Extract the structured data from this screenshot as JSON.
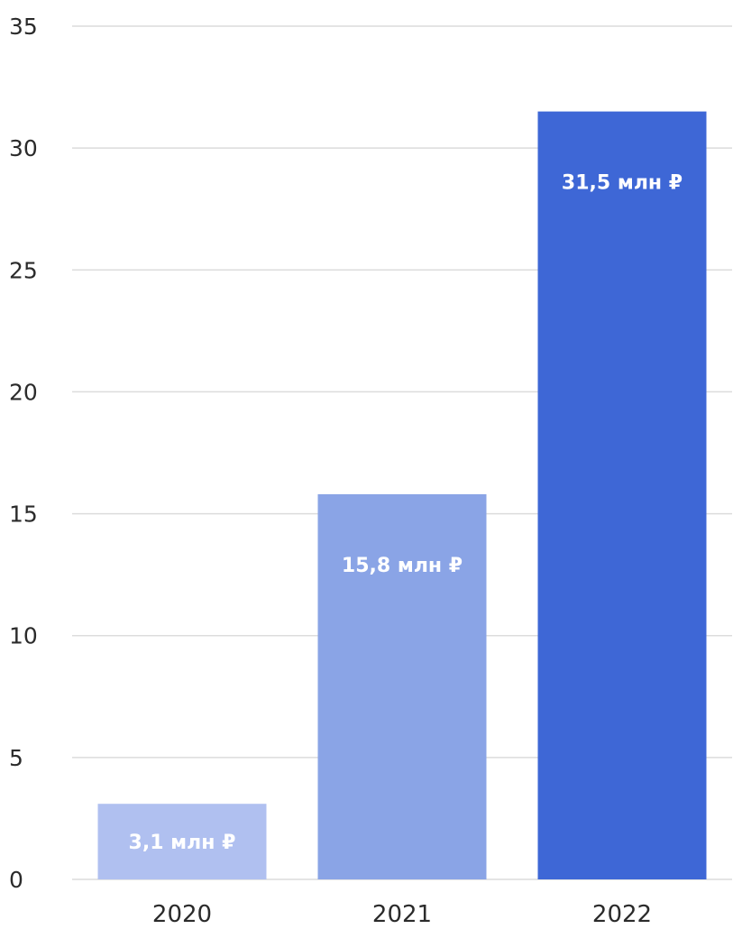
{
  "chart_data": {
    "type": "bar",
    "title": "",
    "xlabel": "",
    "ylabel": "",
    "categories": [
      "2020",
      "2021",
      "2022"
    ],
    "values": [
      3.1,
      15.8,
      31.5
    ],
    "data_labels": [
      "3,1 млн ₽",
      "15,8 млн ₽",
      "31,5 млн ₽"
    ],
    "bar_colors": [
      "#b0c0f0",
      "#8aa4e6",
      "#3e67d6"
    ],
    "ylim": [
      0,
      35
    ],
    "yticks": [
      0,
      5,
      10,
      15,
      20,
      25,
      30,
      35
    ],
    "ytick_labels": [
      "0",
      "5",
      "10",
      "15",
      "20",
      "25",
      "30",
      "35"
    ],
    "grid": true,
    "legend": "none"
  }
}
